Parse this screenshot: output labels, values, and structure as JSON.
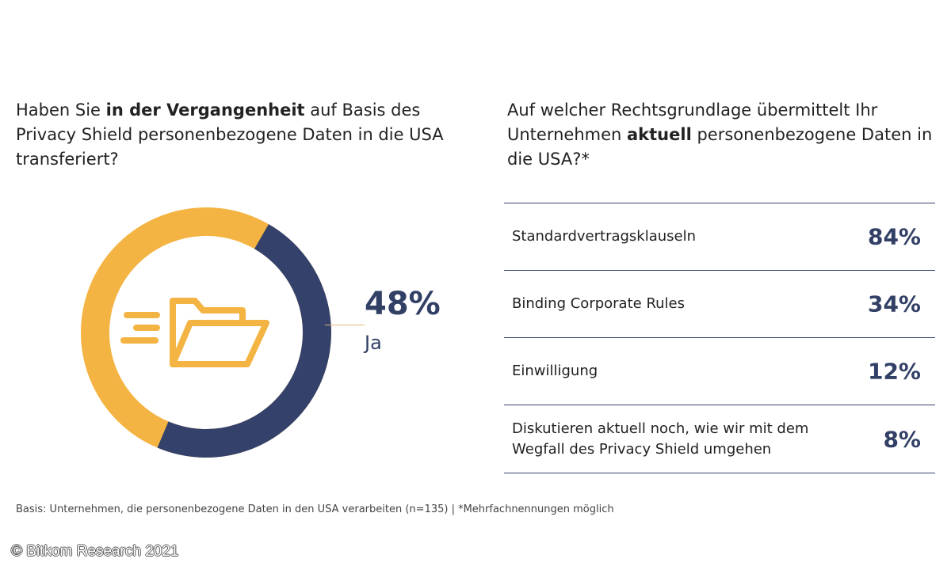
{
  "left_question": {
    "pre": "Haben Sie ",
    "bold": "in der Vergangenheit",
    "post": " auf Basis des Privacy Shield personenbezogene Daten in die USA transferiert?"
  },
  "right_question": {
    "pre": "Auf welcher Rechtsgrundlage übermittelt Ihr Unternehmen ",
    "bold": "aktuell",
    "post": " personenbezogene Daten in die USA?*"
  },
  "donut": {
    "value_label": "48%",
    "category_label": "Ja",
    "icon": "folder-transfer-icon",
    "colors": {
      "highlight": "#33416b",
      "rest": "#f4b443",
      "icon": "#f4b443"
    }
  },
  "table": {
    "rows": [
      {
        "label": "Standardvertragsklauseln",
        "value": "84%"
      },
      {
        "label": "Binding Corporate Rules",
        "value": "34%"
      },
      {
        "label": "Einwilligung",
        "value": "12%"
      },
      {
        "label": "Diskutieren aktuell noch, wie wir mit dem Wegfall des Privacy Shield umgehen",
        "value": "8%"
      }
    ]
  },
  "footnote": "Basis: Unternehmen, die personenbezogene Daten in den USA verarbeiten (n=135) | *Mehrfachnennungen möglich",
  "copyright": "© Bitkom Research 2021",
  "chart_data": [
    {
      "type": "pie",
      "categories": [
        "Ja"
      ],
      "values": [
        48
      ],
      "max": 100
    },
    {
      "type": "table",
      "categories": [
        "Standardvertragsklauseln",
        "Binding Corporate Rules",
        "Einwilligung",
        "Diskutieren aktuell noch, wie wir mit dem Wegfall des Privacy Shield umgehen"
      ],
      "values": [
        84,
        34,
        12,
        8
      ]
    }
  ]
}
